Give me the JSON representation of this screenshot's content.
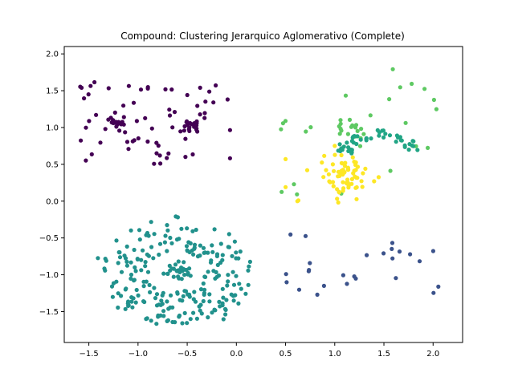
{
  "chart_data": {
    "type": "scatter",
    "title": "Compound: Clustering Jerarquico Aglomerativo (Complete)",
    "xlabel": "",
    "ylabel": "",
    "xlim": [
      -1.75,
      2.3
    ],
    "ylim": [
      -1.92,
      2.1
    ],
    "xticks": [
      -1.5,
      -1.0,
      -0.5,
      0.0,
      0.5,
      1.0,
      1.5,
      2.0
    ],
    "xtick_labels": [
      "−1.5",
      "−1.0",
      "−0.5",
      "0.0",
      "0.5",
      "1.0",
      "1.5",
      "2.0"
    ],
    "yticks": [
      -1.5,
      -1.0,
      -0.5,
      0.0,
      0.5,
      1.0,
      1.5,
      2.0
    ],
    "ytick_labels": [
      "−1.5",
      "−1.0",
      "−0.5",
      "0.0",
      "0.5",
      "1.0",
      "1.5",
      "2.0"
    ],
    "grid": false,
    "legend": "none",
    "clusters": [
      {
        "color": "#440154",
        "shape": "two scattered blobs with dense cores, top-left",
        "centers": [
          [
            -1.2,
            1.1
          ],
          [
            -0.45,
            1.05
          ]
        ]
      },
      {
        "color": "#21918c",
        "shape": "ring around a small inner blob, bottom-left",
        "ring_center": [
          -0.6,
          -0.95
        ],
        "inner_blob": [
          -0.6,
          -0.95
        ]
      },
      {
        "color": "#3b528b",
        "shape": "sparse points, bottom-right",
        "region": {
          "x": [
            0.5,
            2.1
          ],
          "y": [
            -1.3,
            -0.4
          ]
        }
      },
      {
        "color": "#5ec962",
        "shape": "sparse points, top-right plus small curved group",
        "region": {
          "x": [
            0.45,
            2.1
          ],
          "y": [
            0.05,
            1.85
          ]
        }
      },
      {
        "color": "#21a585",
        "shape": "crescent arc",
        "arc_center": [
          1.45,
          0.75
        ]
      },
      {
        "color": "#fde725",
        "shape": "dense blob with a few outliers",
        "blob_center": [
          1.1,
          0.35
        ]
      }
    ]
  }
}
